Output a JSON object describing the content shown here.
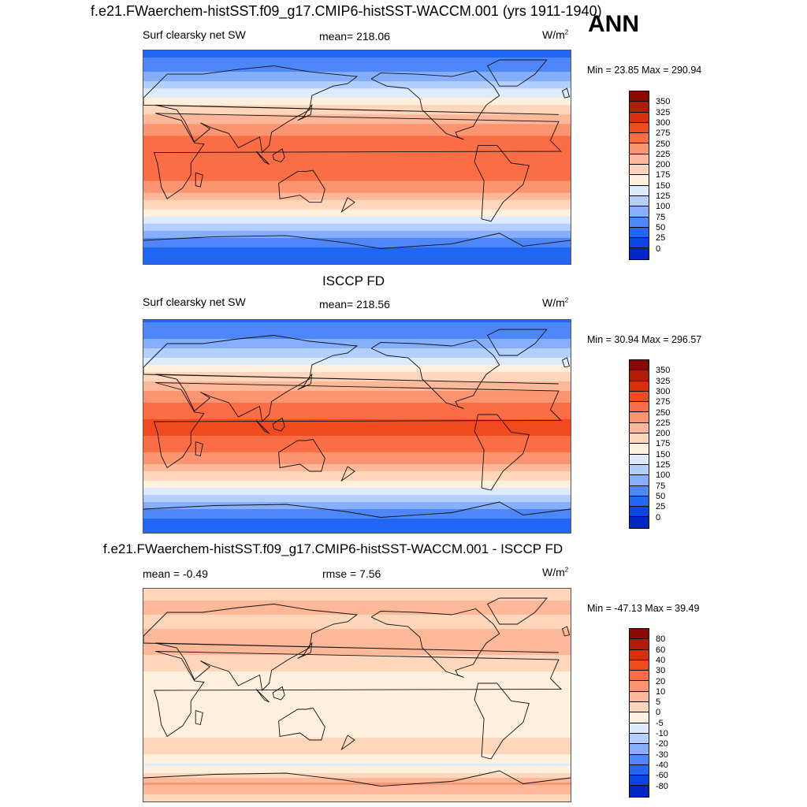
{
  "header": {
    "title": "f.e21.FWaerchem-histSST.f09_g17.CMIP6-histSST-WACCM.001 (yrs 1911-1940)",
    "season": "ANN"
  },
  "colors": {
    "sw_scale": [
      "#00008c",
      "#0026c8",
      "#0a46e6",
      "#2166f5",
      "#4d87fa",
      "#85aefc",
      "#b3cffd",
      "#dcebfe",
      "#fef0dc",
      "#fdd6bc",
      "#fcb898",
      "#fb9470",
      "#fa6d45",
      "#f04a1e",
      "#d8300c",
      "#b01c08",
      "#8a0a02"
    ],
    "diff_scale": [
      "#00008c",
      "#0026c8",
      "#0a46e6",
      "#2166f5",
      "#4d87fa",
      "#85aefc",
      "#b3cffd",
      "#dcebfe",
      "#fef0dc",
      "#fdd6bc",
      "#fcb898",
      "#fb9470",
      "#fa6d45",
      "#f04a1e",
      "#d8300c",
      "#b01c08",
      "#8a0a02"
    ],
    "coastline": "#111111"
  },
  "chart_data": [
    {
      "type": "heatmap",
      "variable": "Surf clearsky net SW",
      "mean_label": "mean= 218.06",
      "units": "W/m",
      "units_sup": "2",
      "minmax": "Min =  23.85 Max = 290.94",
      "colorbar_levels": [
        "350",
        "325",
        "300",
        "275",
        "250",
        "225",
        "200",
        "175",
        "150",
        "125",
        "100",
        "75",
        "50",
        "25",
        "0"
      ],
      "colorbar_values": [
        350,
        325,
        300,
        275,
        250,
        225,
        200,
        175,
        150,
        125,
        100,
        75,
        50,
        25,
        0
      ],
      "zonal_profile": {
        "lat": [
          90,
          75,
          60,
          45,
          30,
          15,
          0,
          -15,
          -30,
          -45,
          -60,
          -75,
          -90
        ],
        "values": [
          40,
          65,
          115,
          170,
          220,
          260,
          275,
          265,
          225,
          170,
          110,
          50,
          30
        ]
      }
    },
    {
      "type": "heatmap",
      "title": "ISCCP FD",
      "variable": "Surf clearsky net SW",
      "mean_label": "mean= 218.56",
      "units": "W/m",
      "units_sup": "2",
      "minmax": "Min =  30.94 Max = 296.57",
      "colorbar_levels": [
        "350",
        "325",
        "300",
        "275",
        "250",
        "225",
        "200",
        "175",
        "150",
        "125",
        "100",
        "75",
        "50",
        "25",
        "0"
      ],
      "colorbar_values": [
        350,
        325,
        300,
        275,
        250,
        225,
        200,
        175,
        150,
        125,
        100,
        75,
        50,
        25,
        0
      ],
      "zonal_profile": {
        "lat": [
          90,
          75,
          60,
          45,
          30,
          15,
          0,
          -15,
          -30,
          -45,
          -60,
          -75,
          -90
        ],
        "values": [
          45,
          70,
          120,
          175,
          225,
          265,
          280,
          270,
          230,
          175,
          115,
          55,
          35
        ]
      }
    },
    {
      "type": "heatmap",
      "title": "f.e21.FWaerchem-histSST.f09_g17.CMIP6-histSST-WACCM.001 - ISCCP FD",
      "mean_label": "mean =  -0.49",
      "rmse_label": "rmse =   7.56",
      "units": "W/m",
      "units_sup": "2",
      "minmax": "Min = -47.13 Max =  39.49",
      "colorbar_levels": [
        "80",
        "60",
        "40",
        "30",
        "20",
        "10",
        "5",
        "0",
        "-5",
        "-10",
        "-20",
        "-30",
        "-40",
        "-60",
        "-80"
      ],
      "colorbar_values": [
        80,
        60,
        40,
        30,
        20,
        10,
        5,
        0,
        -5,
        -10,
        -20,
        -30,
        -40,
        -60,
        -80
      ],
      "zonal_profile": {
        "lat": [
          90,
          75,
          60,
          45,
          30,
          15,
          0,
          -15,
          -30,
          -45,
          -60,
          -75,
          -90
        ],
        "values": [
          3,
          6,
          4,
          8,
          4,
          -2,
          -3,
          -4,
          -2,
          3,
          -6,
          10,
          2
        ]
      }
    }
  ]
}
